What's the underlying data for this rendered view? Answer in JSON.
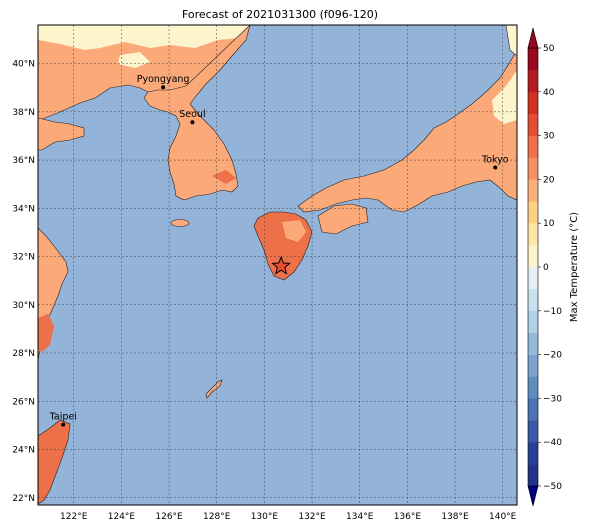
{
  "title": "Forecast of 2021031300 (f096-120)",
  "lon_ticks": [
    "122°E",
    "124°E",
    "126°E",
    "128°E",
    "130°E",
    "132°E",
    "134°E",
    "136°E",
    "138°E",
    "140°E"
  ],
  "lat_ticks": [
    "40°N",
    "38°N",
    "36°N",
    "34°N",
    "32°N",
    "30°N",
    "28°N",
    "26°N",
    "24°N",
    "22°N"
  ],
  "cities": [
    {
      "name": "Pyongyang",
      "lon": 125.75,
      "lat": 39.02
    },
    {
      "name": "Seoul",
      "lon": 126.98,
      "lat": 37.57
    },
    {
      "name": "Tokyo",
      "lon": 139.69,
      "lat": 35.69
    },
    {
      "name": "Taipei",
      "lon": 121.56,
      "lat": 25.03
    }
  ],
  "marker": {
    "symbol": "star",
    "lon": 130.7,
    "lat": 31.6
  },
  "colorbar": {
    "label": "Max Temperature (°C)",
    "ticks": [
      "50",
      "40",
      "30",
      "20",
      "10",
      "0",
      "−10",
      "−20",
      "−30",
      "−40",
      "−50"
    ]
  },
  "chart_data": {
    "type": "heatmap",
    "title": "Forecast of 2021031300 (f096-120)",
    "xlabel": "",
    "ylabel": "",
    "lon_range": [
      120.5,
      140.6
    ],
    "lat_range": [
      21.7,
      41.6
    ],
    "value_range": [
      -50,
      50
    ],
    "levels": [
      -50,
      -45,
      -40,
      -35,
      -30,
      -25,
      -20,
      -15,
      -10,
      -5,
      0,
      5,
      10,
      15,
      20,
      25,
      30,
      35,
      40,
      45,
      50
    ],
    "colors": [
      "#24328a",
      "#283f96",
      "#3a5aa6",
      "#4b73b2",
      "#5f8dc0",
      "#7aa4cf",
      "#93bada",
      "#aed1e5",
      "#c8e1ee",
      "#e5f0f4",
      "#fdf3cc",
      "#fde7a6",
      "#fdcf87",
      "#fcb07a",
      "#f69162",
      "#ee7048",
      "#e44d33",
      "#cf3123",
      "#b61a22",
      "#98081f"
    ],
    "colorbar_label": "Max Temperature (°C)",
    "ocean_color": "#93b3d8",
    "land_bands": [
      {
        "range": "0 to 5",
        "color": "#fdf3cc"
      },
      {
        "range": "15 to 25",
        "color": "#fca97a"
      },
      {
        "range": "25 to 30",
        "color": "#ee7048"
      }
    ],
    "coastlines": true,
    "grid": true
  }
}
